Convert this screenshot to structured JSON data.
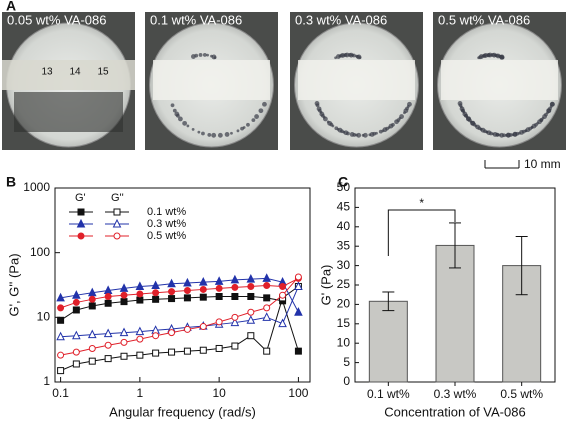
{
  "panel_a": {
    "label": "A",
    "photos": [
      "0.05 wt% VA-086",
      "0.1 wt% VA-086",
      "0.3 wt% VA-086",
      "0.5 wt% VA-086"
    ],
    "ruler_labels": [
      "13",
      "14",
      "15"
    ],
    "scale_bar": "10 mm"
  },
  "chart_data": [
    {
      "type": "line",
      "label": "B",
      "x_label": "Angular frequency (rad/s)",
      "y_label": "G', G'' (Pa)",
      "log_x": true,
      "log_y": true,
      "xlim": [
        0.085,
        140
      ],
      "ylim": [
        1,
        1000
      ],
      "xticks": [
        0.1,
        1,
        10,
        100
      ],
      "yticks": [
        1,
        10,
        100,
        1000
      ],
      "legend_columns": [
        "G'",
        "G''"
      ],
      "x": [
        0.1,
        0.158,
        0.251,
        0.398,
        0.631,
        1,
        1.58,
        2.51,
        3.98,
        6.31,
        10,
        15.8,
        25.1,
        39.8,
        63.1,
        100
      ],
      "series": [
        {
          "name": "0.1 wt%",
          "color": "#111111",
          "marker": "square",
          "storage": [
            9,
            13,
            15,
            16.5,
            17.5,
            18.5,
            19,
            19.5,
            20,
            20.5,
            21,
            21,
            21,
            20,
            18,
            3
          ],
          "loss": [
            1.5,
            1.9,
            2.1,
            2.3,
            2.5,
            2.6,
            2.8,
            2.9,
            3.0,
            3.1,
            3.3,
            3.6,
            5.2,
            3.0,
            20,
            30
          ]
        },
        {
          "name": "0.3 wt%",
          "color": "#2233aa",
          "marker": "triangle",
          "storage": [
            20,
            22,
            24,
            26,
            28,
            30,
            31,
            33,
            34,
            35,
            36,
            38,
            39,
            40,
            35,
            12
          ],
          "loss": [
            5,
            5.2,
            5.4,
            5.6,
            5.8,
            6,
            6.3,
            6.6,
            7,
            7.3,
            7.8,
            8.3,
            9,
            10,
            8,
            30
          ]
        },
        {
          "name": "0.5 wt%",
          "color": "#e0202a",
          "marker": "circle",
          "storage": [
            14,
            17,
            19,
            21,
            22,
            23,
            24,
            25,
            26,
            27,
            28,
            29,
            30,
            31,
            30,
            40
          ],
          "loss": [
            2.6,
            2.9,
            3.3,
            3.7,
            4.1,
            4.6,
            5.2,
            5.8,
            6.5,
            7.2,
            8.5,
            10,
            12,
            14,
            22,
            42
          ]
        }
      ]
    },
    {
      "type": "bar",
      "label": "C",
      "x_label": "Concentration of VA-086",
      "y_label": "G' (Pa)",
      "categories": [
        "0.1 wt%",
        "0.3 wt%",
        "0.5 wt%"
      ],
      "values": [
        20.8,
        35.2,
        30
      ],
      "errors": [
        2.4,
        5.8,
        7.5
      ],
      "color": "#c8c8c4",
      "ylim": [
        0,
        50
      ],
      "yticks": [
        0,
        5,
        10,
        15,
        20,
        25,
        30,
        35,
        40,
        45,
        50
      ],
      "annotation": "*"
    }
  ]
}
